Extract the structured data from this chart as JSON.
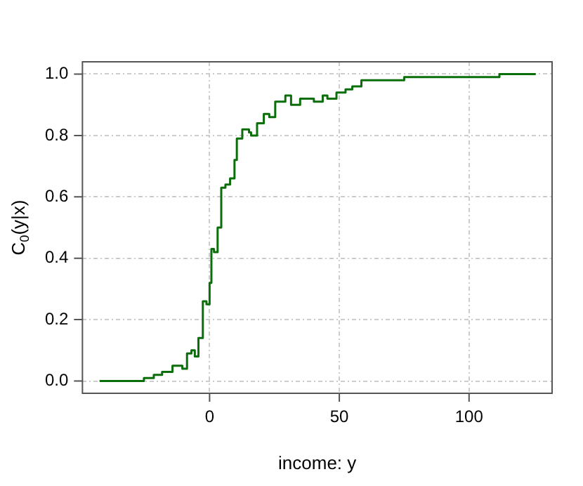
{
  "chart_data": {
    "type": "step",
    "xlabel": "income: y",
    "ylabel": "C$_{0}$(y|x)",
    "xlim": [
      -49,
      132
    ],
    "ylim": [
      -0.04,
      1.04
    ],
    "xticks": [
      0,
      50,
      100
    ],
    "yticks": [
      {
        "value": 0,
        "label": "0.0"
      },
      0.2,
      0.4,
      0.6,
      0.8,
      {
        "value": 1,
        "label": "1.0"
      }
    ],
    "grid": true,
    "legend": false,
    "series": [
      {
        "color": "#0a6e0a",
        "x": [
          -42.4,
          -25.3,
          -21.5,
          -18.3,
          -14.3,
          -10.5,
          -8.7,
          -7,
          -5.7,
          -4.3,
          -2.6,
          -1.2,
          0,
          0.7,
          1.7,
          3.1,
          4.5,
          6.1,
          7.9,
          9.6,
          10.5,
          12.6,
          15.2,
          16,
          18.3,
          20.9,
          23,
          25.3,
          29.2,
          31.4,
          34.9,
          40.2,
          43.6,
          45.4,
          48,
          48.9,
          51.5,
          52.4,
          55,
          58.5,
          75,
          111.7,
          125.7
        ],
        "values": [
          0,
          0.01,
          0.02,
          0.03,
          0.05,
          0.04,
          0.09,
          0.1,
          0.08,
          0.14,
          0.26,
          0.25,
          0.32,
          0.43,
          0.42,
          0.5,
          0.63,
          0.64,
          0.66,
          0.72,
          0.79,
          0.82,
          0.81,
          0.8,
          0.84,
          0.87,
          0.86,
          0.91,
          0.93,
          0.9,
          0.92,
          0.91,
          0.93,
          0.92,
          0.92,
          0.94,
          0.94,
          0.95,
          0.96,
          0.98,
          0.99,
          1.0,
          1.0
        ]
      }
    ]
  }
}
